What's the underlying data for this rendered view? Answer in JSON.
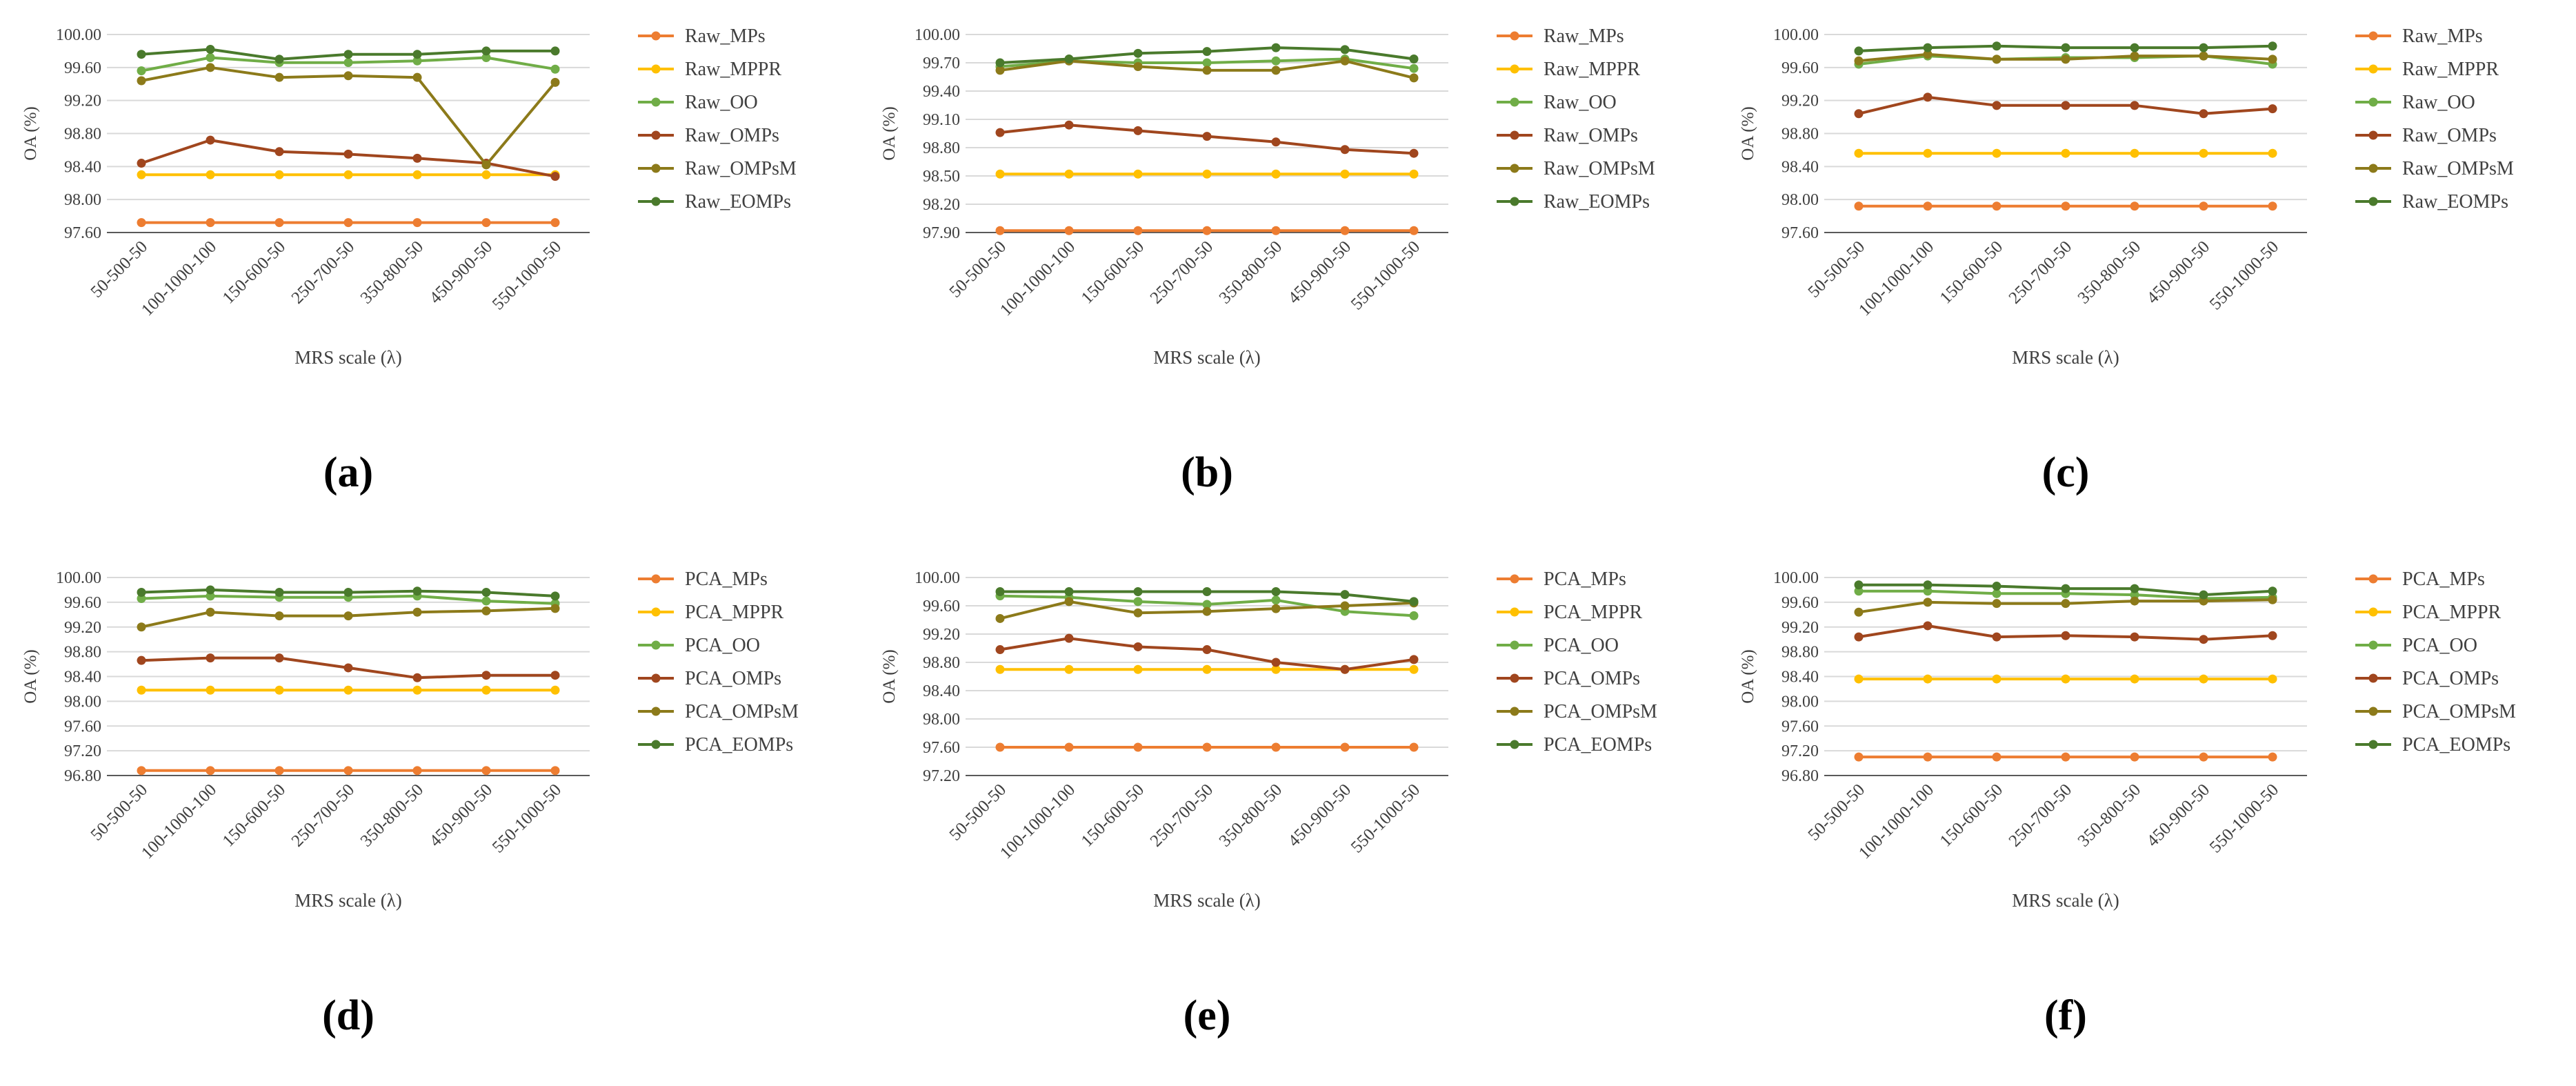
{
  "figure": {
    "colors": {
      "MPs": "#ed7d31",
      "MPPR": "#ffc000",
      "OO": "#70ad47",
      "OMPs": "#a0461e",
      "OMPsM": "#8c7a1a",
      "EOMPs": "#4a7a2c",
      "grid": "#d9d9d9",
      "axis": "#595959",
      "text": "#404040"
    }
  },
  "chart_data": [
    {
      "type": "line",
      "panel_label": "(a)",
      "ylabel": "OA (%)",
      "xlabel": "MRS scale (λ)",
      "ylim": [
        97.6,
        100.0
      ],
      "yticks": [
        "97.60",
        "98.00",
        "98.40",
        "98.80",
        "99.20",
        "99.60",
        "100.00"
      ],
      "categories": [
        "50-500-50",
        "100-1000-100",
        "150-600-50",
        "250-700-50",
        "350-800-50",
        "450-900-50",
        "550-1000-50"
      ],
      "series": [
        {
          "name": "Raw_MPs",
          "key": "MPs",
          "values": [
            97.72,
            97.72,
            97.72,
            97.72,
            97.72,
            97.72,
            97.72
          ]
        },
        {
          "name": "Raw_MPPR",
          "key": "MPPR",
          "values": [
            98.3,
            98.3,
            98.3,
            98.3,
            98.3,
            98.3,
            98.3
          ]
        },
        {
          "name": "Raw_OO",
          "key": "OO",
          "values": [
            99.56,
            99.72,
            99.66,
            99.66,
            99.68,
            99.72,
            99.58
          ]
        },
        {
          "name": "Raw_OMPs",
          "key": "OMPs",
          "values": [
            98.44,
            98.72,
            98.58,
            98.55,
            98.5,
            98.44,
            98.28
          ]
        },
        {
          "name": "Raw_OMPsM",
          "key": "OMPsM",
          "values": [
            99.44,
            99.6,
            99.48,
            99.5,
            99.48,
            98.42,
            99.42
          ]
        },
        {
          "name": "Raw_EOMPs",
          "key": "EOMPs",
          "values": [
            99.76,
            99.82,
            99.7,
            99.76,
            99.76,
            99.8,
            99.8
          ]
        }
      ]
    },
    {
      "type": "line",
      "panel_label": "(b)",
      "ylabel": "OA (%)",
      "xlabel": "MRS scale (λ)",
      "ylim": [
        97.9,
        100.0
      ],
      "yticks": [
        "97.90",
        "98.20",
        "98.50",
        "98.80",
        "99.10",
        "99.40",
        "99.70",
        "100.00"
      ],
      "categories": [
        "50-500-50",
        "100-1000-100",
        "150-600-50",
        "250-700-50",
        "350-800-50",
        "450-900-50",
        "550-1000-50"
      ],
      "series": [
        {
          "name": "Raw_MPs",
          "key": "MPs",
          "values": [
            97.92,
            97.92,
            97.92,
            97.92,
            97.92,
            97.92,
            97.92
          ]
        },
        {
          "name": "Raw_MPPR",
          "key": "MPPR",
          "values": [
            98.52,
            98.52,
            98.52,
            98.52,
            98.52,
            98.52,
            98.52
          ]
        },
        {
          "name": "Raw_OO",
          "key": "OO",
          "values": [
            99.66,
            99.72,
            99.7,
            99.7,
            99.72,
            99.74,
            99.64
          ]
        },
        {
          "name": "Raw_OMPs",
          "key": "OMPs",
          "values": [
            98.96,
            99.04,
            98.98,
            98.92,
            98.86,
            98.78,
            98.74
          ]
        },
        {
          "name": "Raw_OMPsM",
          "key": "OMPsM",
          "values": [
            99.62,
            99.72,
            99.66,
            99.62,
            99.62,
            99.72,
            99.54
          ]
        },
        {
          "name": "Raw_EOMPs",
          "key": "EOMPs",
          "values": [
            99.7,
            99.74,
            99.8,
            99.82,
            99.86,
            99.84,
            99.74
          ]
        }
      ]
    },
    {
      "type": "line",
      "panel_label": "(c)",
      "ylabel": "OA (%)",
      "xlabel": "MRS scale (λ)",
      "ylim": [
        97.6,
        100.0
      ],
      "yticks": [
        "97.60",
        "98.00",
        "98.40",
        "98.80",
        "99.20",
        "99.60",
        "100.00"
      ],
      "categories": [
        "50-500-50",
        "100-1000-100",
        "150-600-50",
        "250-700-50",
        "350-800-50",
        "450-900-50",
        "550-1000-50"
      ],
      "series": [
        {
          "name": "Raw_MPs",
          "key": "MPs",
          "values": [
            97.92,
            97.92,
            97.92,
            97.92,
            97.92,
            97.92,
            97.92
          ]
        },
        {
          "name": "Raw_MPPR",
          "key": "MPPR",
          "values": [
            98.56,
            98.56,
            98.56,
            98.56,
            98.56,
            98.56,
            98.56
          ]
        },
        {
          "name": "Raw_OO",
          "key": "OO",
          "values": [
            99.64,
            99.74,
            99.7,
            99.72,
            99.72,
            99.74,
            99.64
          ]
        },
        {
          "name": "Raw_OMPs",
          "key": "OMPs",
          "values": [
            99.04,
            99.24,
            99.14,
            99.14,
            99.14,
            99.04,
            99.1
          ]
        },
        {
          "name": "Raw_OMPsM",
          "key": "OMPsM",
          "values": [
            99.68,
            99.76,
            99.7,
            99.7,
            99.74,
            99.74,
            99.7
          ]
        },
        {
          "name": "Raw_EOMPs",
          "key": "EOMPs",
          "values": [
            99.8,
            99.84,
            99.86,
            99.84,
            99.84,
            99.84,
            99.86
          ]
        }
      ]
    },
    {
      "type": "line",
      "panel_label": "(d)",
      "ylabel": "OA (%)",
      "xlabel": "MRS scale (λ)",
      "ylim": [
        96.8,
        100.0
      ],
      "yticks": [
        "96.80",
        "97.20",
        "97.60",
        "98.00",
        "98.40",
        "98.80",
        "99.20",
        "99.60",
        "100.00"
      ],
      "categories": [
        "50-500-50",
        "100-1000-100",
        "150-600-50",
        "250-700-50",
        "350-800-50",
        "450-900-50",
        "550-1000-50"
      ],
      "series": [
        {
          "name": "PCA_MPs",
          "key": "MPs",
          "values": [
            96.88,
            96.88,
            96.88,
            96.88,
            96.88,
            96.88,
            96.88
          ]
        },
        {
          "name": "PCA_MPPR",
          "key": "MPPR",
          "values": [
            98.18,
            98.18,
            98.18,
            98.18,
            98.18,
            98.18,
            98.18
          ]
        },
        {
          "name": "PCA_OO",
          "key": "OO",
          "values": [
            99.66,
            99.7,
            99.68,
            99.68,
            99.7,
            99.62,
            99.58
          ]
        },
        {
          "name": "PCA_OMPs",
          "key": "OMPs",
          "values": [
            98.66,
            98.7,
            98.7,
            98.54,
            98.38,
            98.42,
            98.42
          ]
        },
        {
          "name": "PCA_OMPsM",
          "key": "OMPsM",
          "values": [
            99.2,
            99.44,
            99.38,
            99.38,
            99.44,
            99.46,
            99.5
          ]
        },
        {
          "name": "PCA_EOMPs",
          "key": "EOMPs",
          "values": [
            99.76,
            99.8,
            99.76,
            99.76,
            99.78,
            99.76,
            99.7
          ]
        }
      ]
    },
    {
      "type": "line",
      "panel_label": "(e)",
      "ylabel": "OA (%)",
      "xlabel": "MRS scale (λ)",
      "ylim": [
        97.2,
        100.0
      ],
      "yticks": [
        "97.20",
        "97.60",
        "98.00",
        "98.40",
        "98.80",
        "99.20",
        "99.60",
        "100.00"
      ],
      "categories": [
        "50-500-50",
        "100-1000-100",
        "150-600-50",
        "250-700-50",
        "350-800-50",
        "450-900-50",
        "550-1000-50"
      ],
      "series": [
        {
          "name": "PCA_MPs",
          "key": "MPs",
          "values": [
            97.6,
            97.6,
            97.6,
            97.6,
            97.6,
            97.6,
            97.6
          ]
        },
        {
          "name": "PCA_MPPR",
          "key": "MPPR",
          "values": [
            98.7,
            98.7,
            98.7,
            98.7,
            98.7,
            98.7,
            98.7
          ]
        },
        {
          "name": "PCA_OO",
          "key": "OO",
          "values": [
            99.74,
            99.72,
            99.66,
            99.62,
            99.68,
            99.52,
            99.46
          ]
        },
        {
          "name": "PCA_OMPs",
          "key": "OMPs",
          "values": [
            98.98,
            99.14,
            99.02,
            98.98,
            98.8,
            98.7,
            98.84
          ]
        },
        {
          "name": "PCA_OMPsM",
          "key": "OMPsM",
          "values": [
            99.42,
            99.66,
            99.5,
            99.52,
            99.56,
            99.6,
            99.64
          ]
        },
        {
          "name": "PCA_EOMPs",
          "key": "EOMPs",
          "values": [
            99.8,
            99.8,
            99.8,
            99.8,
            99.8,
            99.76,
            99.66
          ]
        }
      ]
    },
    {
      "type": "line",
      "panel_label": "(f)",
      "ylabel": "OA (%)",
      "xlabel": "MRS scale (λ)",
      "ylim": [
        96.8,
        100.0
      ],
      "yticks": [
        "96.80",
        "97.20",
        "97.60",
        "98.00",
        "98.40",
        "98.80",
        "99.20",
        "99.60",
        "100.00"
      ],
      "categories": [
        "50-500-50",
        "100-1000-100",
        "150-600-50",
        "250-700-50",
        "350-800-50",
        "450-900-50",
        "550-1000-50"
      ],
      "series": [
        {
          "name": "PCA_MPs",
          "key": "MPs",
          "values": [
            97.1,
            97.1,
            97.1,
            97.1,
            97.1,
            97.1,
            97.1
          ]
        },
        {
          "name": "PCA_MPPR",
          "key": "MPPR",
          "values": [
            98.36,
            98.36,
            98.36,
            98.36,
            98.36,
            98.36,
            98.36
          ]
        },
        {
          "name": "PCA_OO",
          "key": "OO",
          "values": [
            99.78,
            99.78,
            99.74,
            99.74,
            99.72,
            99.66,
            99.68
          ]
        },
        {
          "name": "PCA_OMPs",
          "key": "OMPs",
          "values": [
            99.04,
            99.22,
            99.04,
            99.06,
            99.04,
            99.0,
            99.06
          ]
        },
        {
          "name": "PCA_OMPsM",
          "key": "OMPsM",
          "values": [
            99.44,
            99.6,
            99.58,
            99.58,
            99.62,
            99.62,
            99.64
          ]
        },
        {
          "name": "PCA_EOMPs",
          "key": "EOMPs",
          "values": [
            99.88,
            99.88,
            99.86,
            99.82,
            99.82,
            99.72,
            99.78
          ]
        }
      ]
    }
  ]
}
